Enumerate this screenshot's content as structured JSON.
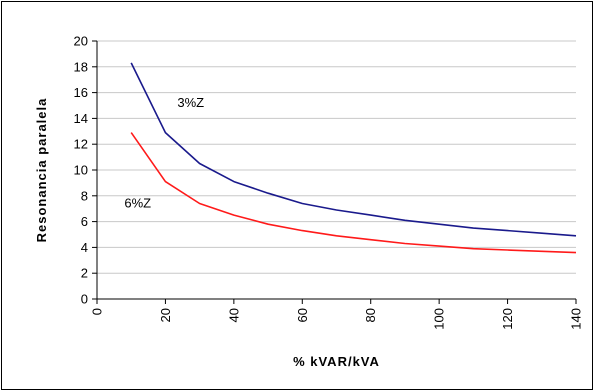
{
  "chart_data": {
    "type": "line",
    "title": "",
    "xlabel": "% kVAR/kVA",
    "ylabel": "Resonancia paralela",
    "xlim": [
      0,
      140
    ],
    "ylim": [
      0,
      20
    ],
    "xticks": [
      "0",
      "20",
      "40",
      "60",
      "80",
      "100",
      "120",
      "140"
    ],
    "yticks": [
      "0",
      "2",
      "4",
      "6",
      "8",
      "10",
      "12",
      "14",
      "16",
      "18",
      "20"
    ],
    "grid": true,
    "legend": "inline labels",
    "x": [
      10,
      20,
      30,
      40,
      50,
      60,
      70,
      80,
      90,
      100,
      110,
      120,
      130,
      140
    ],
    "series": [
      {
        "name": "3%Z",
        "color": "#1a1a8c",
        "values": [
          18.3,
          12.9,
          10.5,
          9.1,
          8.2,
          7.4,
          6.9,
          6.5,
          6.1,
          5.8,
          5.5,
          5.3,
          5.1,
          4.9
        ]
      },
      {
        "name": "6%Z",
        "color": "#ff1a1a",
        "values": [
          12.9,
          9.1,
          7.4,
          6.5,
          5.8,
          5.3,
          4.9,
          4.6,
          4.3,
          4.1,
          3.9,
          3.8,
          3.7,
          3.6
        ]
      }
    ]
  }
}
